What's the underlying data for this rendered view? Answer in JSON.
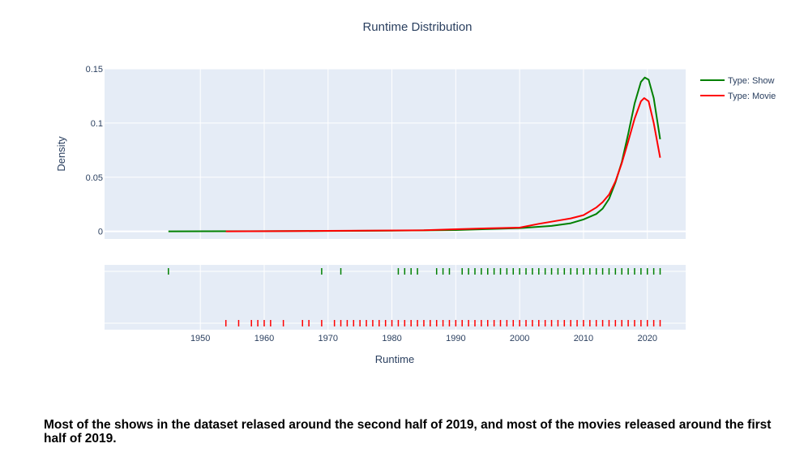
{
  "chart_data": {
    "type": "line",
    "title": "Runtime Distribution",
    "xlabel": "Runtime",
    "ylabel": "Density",
    "xlim": [
      1935,
      2026
    ],
    "ylim": [
      -0.007,
      0.15
    ],
    "x_ticks": [
      1950,
      1960,
      1970,
      1980,
      1990,
      2000,
      2010,
      2020
    ],
    "y_ticks": [
      {
        "value": 0,
        "label": "0"
      },
      {
        "value": 0.05,
        "label": "0.05"
      },
      {
        "value": 0.1,
        "label": "0.1"
      },
      {
        "value": 0.15,
        "label": "0.15"
      }
    ],
    "grid": true,
    "legend_position": "top-right",
    "series": [
      {
        "name": "Type: Show",
        "color": "#008000",
        "points": [
          [
            1945,
            0
          ],
          [
            1960,
            0.0002
          ],
          [
            1970,
            0.0004
          ],
          [
            1980,
            0.0006
          ],
          [
            1990,
            0.0012
          ],
          [
            2000,
            0.003
          ],
          [
            2005,
            0.005
          ],
          [
            2008,
            0.0075
          ],
          [
            2010,
            0.011
          ],
          [
            2012,
            0.016
          ],
          [
            2013,
            0.021
          ],
          [
            2014,
            0.03
          ],
          [
            2015,
            0.045
          ],
          [
            2016,
            0.064
          ],
          [
            2017,
            0.09
          ],
          [
            2018,
            0.118
          ],
          [
            2019,
            0.138
          ],
          [
            2019.6,
            0.142
          ],
          [
            2020.2,
            0.14
          ],
          [
            2021,
            0.123
          ],
          [
            2022,
            0.085
          ]
        ],
        "rug": [
          1945,
          1969,
          1972,
          1981,
          1982,
          1983,
          1984,
          1987,
          1988,
          1989,
          1991,
          1992,
          1993,
          1994,
          1995,
          1996,
          1997,
          1998,
          1999,
          2000,
          2001,
          2002,
          2003,
          2004,
          2005,
          2006,
          2007,
          2008,
          2009,
          2010,
          2011,
          2012,
          2013,
          2014,
          2015,
          2016,
          2017,
          2018,
          2019,
          2020,
          2021,
          2022
        ]
      },
      {
        "name": "Type: Movie",
        "color": "#ff0000",
        "points": [
          [
            1954,
            0
          ],
          [
            1965,
            0.0003
          ],
          [
            1975,
            0.0006
          ],
          [
            1985,
            0.001
          ],
          [
            1990,
            0.002
          ],
          [
            1995,
            0.0028
          ],
          [
            2000,
            0.0035
          ],
          [
            2003,
            0.007
          ],
          [
            2006,
            0.01
          ],
          [
            2008,
            0.012
          ],
          [
            2010,
            0.015
          ],
          [
            2012,
            0.022
          ],
          [
            2013,
            0.027
          ],
          [
            2014,
            0.034
          ],
          [
            2015,
            0.046
          ],
          [
            2016,
            0.063
          ],
          [
            2017,
            0.083
          ],
          [
            2018,
            0.104
          ],
          [
            2019,
            0.12
          ],
          [
            2019.5,
            0.123
          ],
          [
            2020.2,
            0.12
          ],
          [
            2021,
            0.1
          ],
          [
            2022,
            0.068
          ]
        ],
        "rug": [
          1954,
          1956,
          1958,
          1959,
          1960,
          1961,
          1963,
          1966,
          1967,
          1969,
          1971,
          1972,
          1973,
          1974,
          1975,
          1976,
          1977,
          1978,
          1979,
          1980,
          1981,
          1982,
          1983,
          1984,
          1985,
          1986,
          1987,
          1988,
          1989,
          1990,
          1991,
          1992,
          1993,
          1994,
          1995,
          1996,
          1997,
          1998,
          1999,
          2000,
          2001,
          2002,
          2003,
          2004,
          2005,
          2006,
          2007,
          2008,
          2009,
          2010,
          2011,
          2012,
          2013,
          2014,
          2015,
          2016,
          2017,
          2018,
          2019,
          2020,
          2021,
          2022
        ]
      }
    ]
  },
  "caption": "Most of the shows in the dataset relased around the second half of 2019, and most of the movies released around the first half of 2019."
}
